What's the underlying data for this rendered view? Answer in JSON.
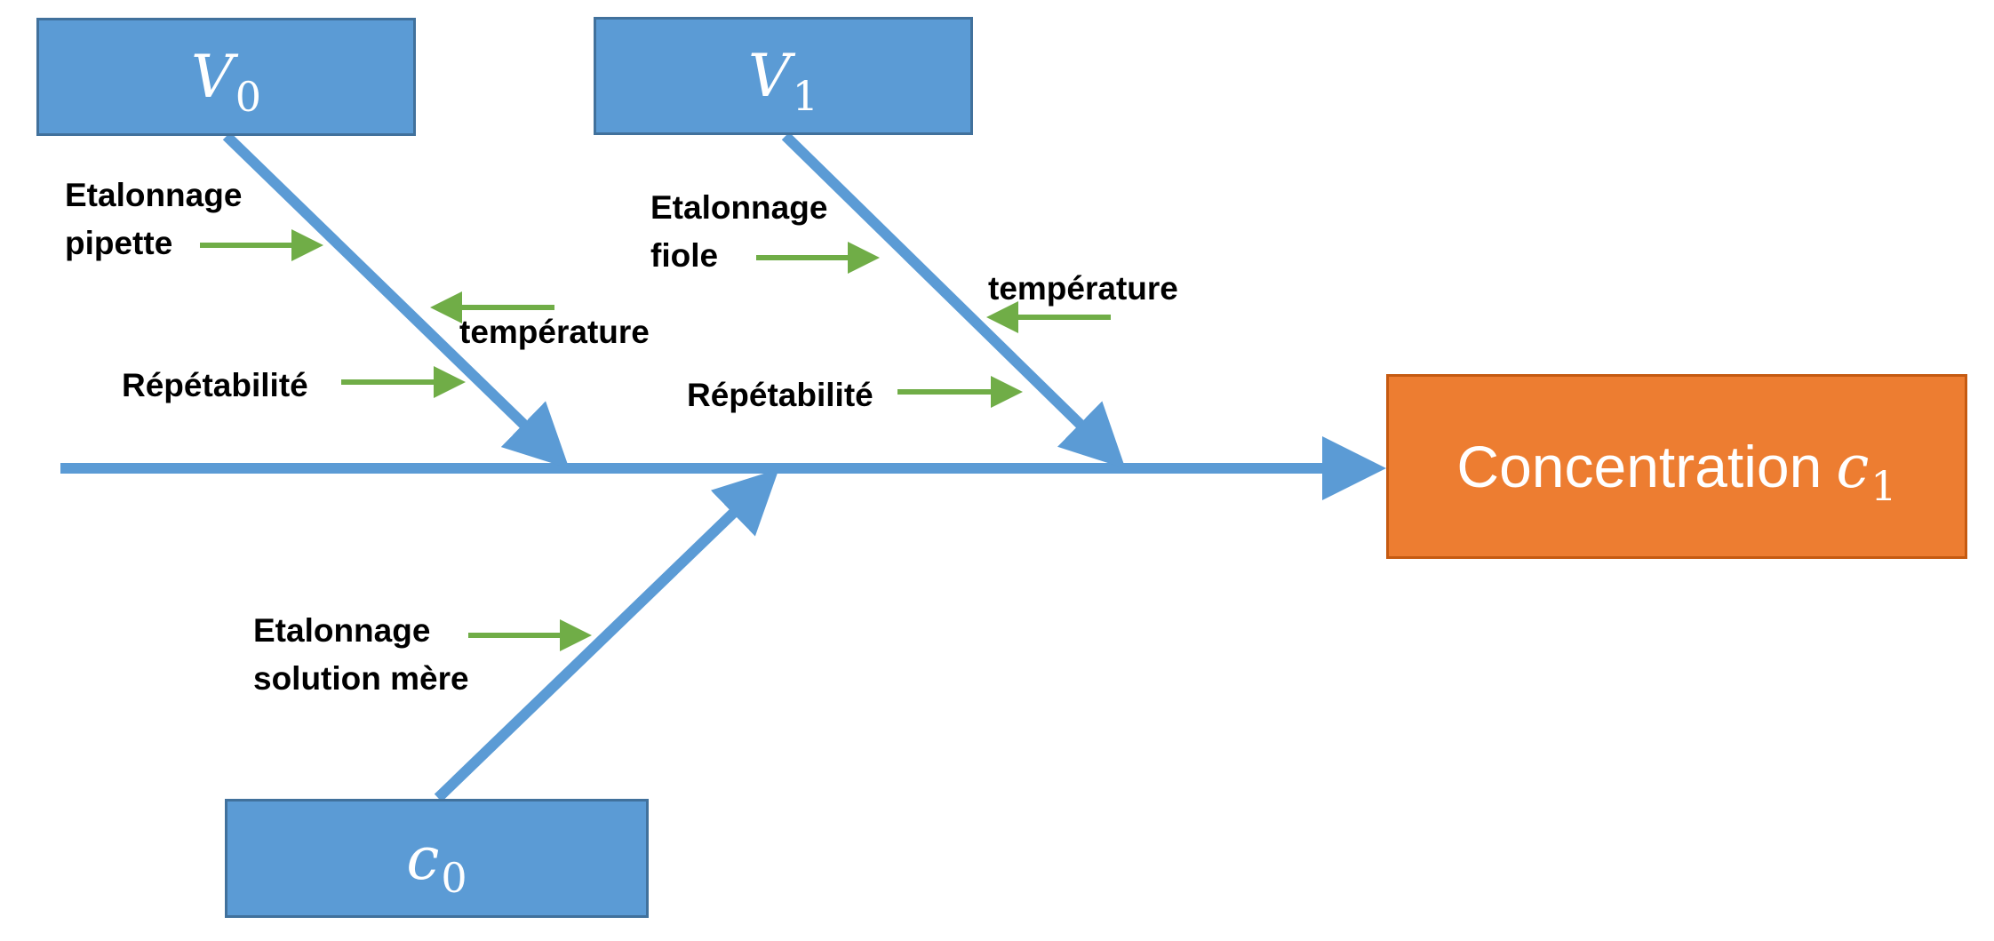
{
  "causes": {
    "v0": {
      "symbol": "V",
      "subscript": "0"
    },
    "v1": {
      "symbol": "V",
      "subscript": "1"
    },
    "c0": {
      "symbol": "c",
      "subscript": "0"
    }
  },
  "effect": {
    "label": "Concentration",
    "symbol": "c",
    "subscript": "1"
  },
  "factors": {
    "v0_calibration": {
      "line1": "Etalonnage",
      "line2": "pipette"
    },
    "v0_temperature": "température",
    "v0_repeatability": "Répétabilité",
    "v1_calibration": {
      "line1": "Etalonnage",
      "line2": "fiole"
    },
    "v1_temperature": "température",
    "v1_repeatability": "Répétabilité",
    "c0_calibration": {
      "line1": "Etalonnage",
      "line2": "solution mère"
    }
  },
  "colors": {
    "cause_fill": "#5b9bd5",
    "cause_border": "#41719c",
    "effect_fill": "#ed7d31",
    "effect_border": "#c55a11",
    "factor_arrow": "#70ad47",
    "text": "#000000"
  }
}
